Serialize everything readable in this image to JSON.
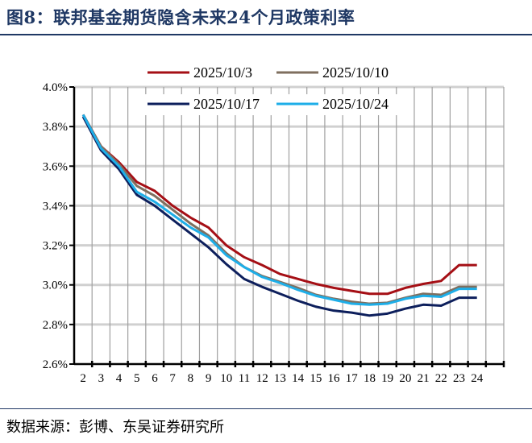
{
  "title": "图8：联邦基金期货隐含未来24个月政策利率",
  "source": "数据来源：彭博、东吴证券研究所",
  "chart_data": {
    "type": "line",
    "title": "图8：联邦基金期货隐含未来24个月政策利率",
    "xlabel": "",
    "ylabel": "",
    "categories": [
      "2",
      "3",
      "4",
      "5",
      "6",
      "7",
      "8",
      "9",
      "10",
      "11",
      "12",
      "13",
      "14",
      "15",
      "16",
      "17",
      "18",
      "19",
      "20",
      "21",
      "22",
      "23",
      "24"
    ],
    "ylim": [
      2.6,
      4.0
    ],
    "yticks": [
      "2.6%",
      "2.8%",
      "3.0%",
      "3.2%",
      "3.4%",
      "3.6%",
      "3.8%",
      "4.0%"
    ],
    "grid": true,
    "legend_position": "top",
    "series": [
      {
        "name": "2025/10/3",
        "color": "#a50f15",
        "values": [
          3.86,
          3.7,
          3.62,
          3.52,
          3.475,
          3.4,
          3.34,
          3.29,
          3.2,
          3.14,
          3.1,
          3.055,
          3.03,
          3.005,
          2.985,
          2.97,
          2.955,
          2.955,
          2.985,
          3.005,
          3.02,
          3.1,
          3.1
        ]
      },
      {
        "name": "2025/10/10",
        "color": "#7f6f5f",
        "values": [
          3.86,
          3.7,
          3.61,
          3.5,
          3.45,
          3.38,
          3.31,
          3.25,
          3.16,
          3.09,
          3.045,
          3.015,
          2.985,
          2.95,
          2.93,
          2.915,
          2.905,
          2.91,
          2.935,
          2.955,
          2.95,
          2.99,
          2.99
        ]
      },
      {
        "name": "2025/10/17",
        "color": "#0d1f5c",
        "values": [
          3.85,
          3.68,
          3.585,
          3.455,
          3.4,
          3.33,
          3.26,
          3.19,
          3.105,
          3.03,
          2.99,
          2.955,
          2.92,
          2.89,
          2.87,
          2.86,
          2.845,
          2.855,
          2.88,
          2.9,
          2.895,
          2.935,
          2.935
        ]
      },
      {
        "name": "2025/10/24",
        "color": "#1eaee8",
        "values": [
          3.86,
          3.69,
          3.6,
          3.47,
          3.42,
          3.355,
          3.29,
          3.24,
          3.15,
          3.09,
          3.04,
          3.01,
          2.975,
          2.945,
          2.925,
          2.905,
          2.9,
          2.905,
          2.93,
          2.945,
          2.94,
          2.98,
          2.98
        ]
      }
    ]
  }
}
